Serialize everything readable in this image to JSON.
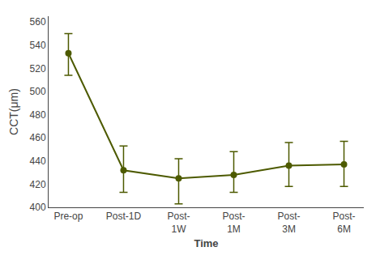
{
  "chart_data": {
    "type": "line",
    "xlabel": "Time",
    "ylabel": "CCT(μm)",
    "categories": [
      "Pre-op",
      "Post-1D",
      "Post-\n1W",
      "Post-\n1M",
      "Post-\n3M",
      "Post-\n6M"
    ],
    "values": [
      533,
      432,
      425,
      428,
      436,
      437
    ],
    "error_upper": [
      17,
      21,
      17,
      20,
      20,
      20
    ],
    "error_lower": [
      19,
      19,
      22,
      15,
      18,
      19
    ],
    "color": "#4d5a00",
    "marker": "circle",
    "ylim": [
      400,
      565
    ],
    "yticks": [
      400,
      420,
      440,
      460,
      480,
      500,
      520,
      540,
      560
    ],
    "grid": false
  }
}
